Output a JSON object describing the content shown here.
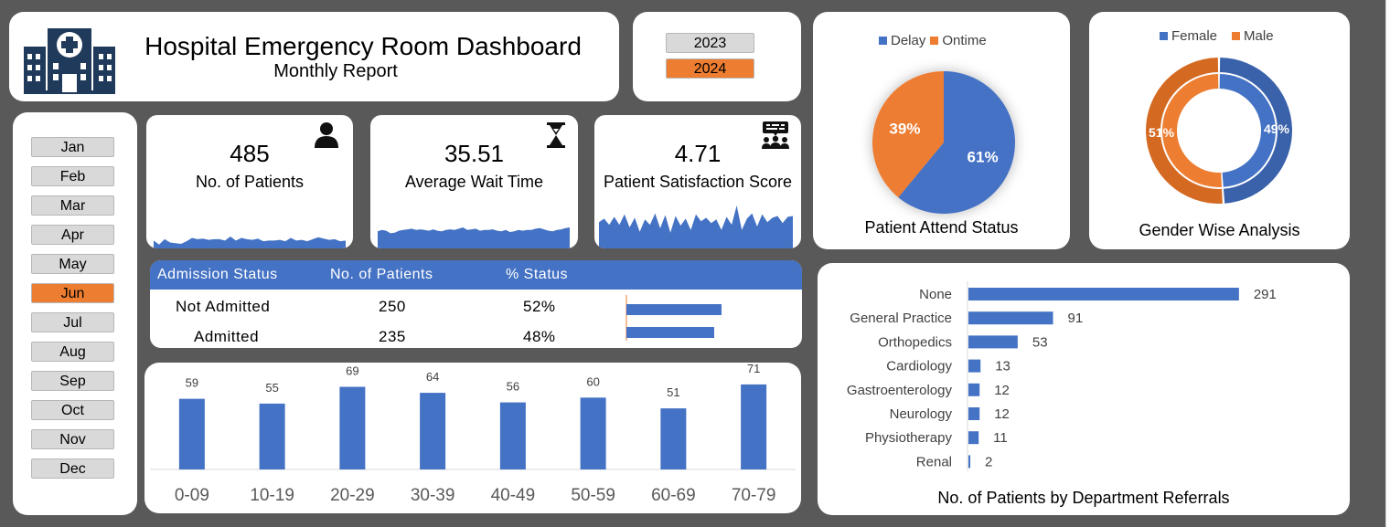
{
  "header": {
    "title": "Hospital Emergency Room Dashboard",
    "subtitle": "Monthly Report",
    "logo_icon": "hospital-building-icon"
  },
  "years": {
    "items": [
      "2023",
      "2024"
    ],
    "selected": "2024"
  },
  "months": {
    "items": [
      "Jan",
      "Feb",
      "Mar",
      "Apr",
      "May",
      "Jun",
      "Jul",
      "Aug",
      "Sep",
      "Oct",
      "Nov",
      "Dec"
    ],
    "selected": "Jun"
  },
  "kpis": {
    "patients": {
      "value": "485",
      "label": "No. of Patients",
      "icon": "patient-person-icon"
    },
    "wait_time": {
      "value": "35.51",
      "label": "Average Wait Time",
      "icon": "hourglass-icon"
    },
    "satisfaction": {
      "value": "4.71",
      "label": "Patient Satisfaction Score",
      "icon": "audience-presentation-icon"
    }
  },
  "admission": {
    "headers": [
      "Admission Status",
      "No. of Patients",
      "% Status"
    ],
    "rows": [
      {
        "status": "Not Admitted",
        "count": "250",
        "pct": "52%",
        "pct_value": 52
      },
      {
        "status": "Admitted",
        "count": "235",
        "pct": "48%",
        "pct_value": 48
      }
    ]
  },
  "colors": {
    "blue": "#4472c4",
    "orange": "#ed7d31",
    "background": "#595959",
    "card": "#ffffff",
    "slicer_off": "#d9d9d9"
  },
  "chart_data": [
    {
      "id": "patients_sparkline",
      "type": "area",
      "values": [
        12,
        6,
        14,
        9,
        8,
        7,
        11,
        16,
        14,
        15,
        13,
        14,
        14,
        12,
        18,
        12,
        16,
        14,
        13,
        15,
        11,
        12,
        12,
        13,
        11,
        16,
        12,
        13,
        11,
        14,
        17,
        15,
        13,
        14,
        11,
        12
      ]
    },
    {
      "id": "wait_time_sparkline",
      "type": "area",
      "values": [
        26,
        28,
        27,
        23,
        24,
        27,
        28,
        29,
        30,
        28,
        29,
        28,
        27,
        29,
        27,
        26,
        28,
        29,
        28,
        30,
        32,
        28,
        29,
        30,
        27,
        28,
        28,
        29,
        27,
        26,
        28,
        25,
        26,
        28,
        27,
        28,
        28,
        30,
        31,
        29,
        27,
        26,
        28,
        29,
        31,
        32
      ]
    },
    {
      "id": "satisfaction_sparkline",
      "type": "area",
      "values": [
        30,
        34,
        27,
        36,
        27,
        39,
        24,
        35,
        19,
        33,
        27,
        40,
        23,
        38,
        18,
        37,
        26,
        34,
        21,
        39,
        31,
        35,
        29,
        33,
        21,
        36,
        27,
        49,
        21,
        34,
        40,
        25,
        39,
        30,
        35,
        37,
        29,
        36,
        37
      ]
    },
    {
      "id": "attend_status",
      "type": "pie",
      "title": "Patient Attend Status",
      "labels": [
        "Delay",
        "Ontime"
      ],
      "values": [
        61,
        39
      ],
      "value_labels": [
        "61%",
        "39%"
      ],
      "legend": "top"
    },
    {
      "id": "gender",
      "type": "pie",
      "title": "Gender Wise Analysis",
      "labels": [
        "Female",
        "Male"
      ],
      "values": [
        49,
        51
      ],
      "value_labels": [
        "49%",
        "51%"
      ],
      "legend": "top"
    },
    {
      "id": "age_groups",
      "type": "bar",
      "categories": [
        "0-09",
        "10-19",
        "20-29",
        "30-39",
        "40-49",
        "50-59",
        "60-69",
        "70-79"
      ],
      "values": [
        59,
        55,
        69,
        64,
        56,
        60,
        51,
        71
      ],
      "value_labels": [
        "59",
        "55",
        "69",
        "64",
        "56",
        "60",
        "51",
        "71"
      ],
      "ylim": [
        0,
        90
      ]
    },
    {
      "id": "department_referrals",
      "type": "bar",
      "orientation": "horizontal",
      "title": "No. of Patients by Department Referrals",
      "categories": [
        "None",
        "General Practice",
        "Orthopedics",
        "Cardiology",
        "Gastroenterology",
        "Neurology",
        "Physiotherapy",
        "Renal"
      ],
      "values": [
        291,
        91,
        53,
        13,
        12,
        12,
        11,
        2
      ],
      "value_labels": [
        "291",
        "91",
        "53",
        "13",
        "12",
        "12",
        "11",
        "2"
      ],
      "xlim": [
        0,
        300
      ]
    }
  ]
}
